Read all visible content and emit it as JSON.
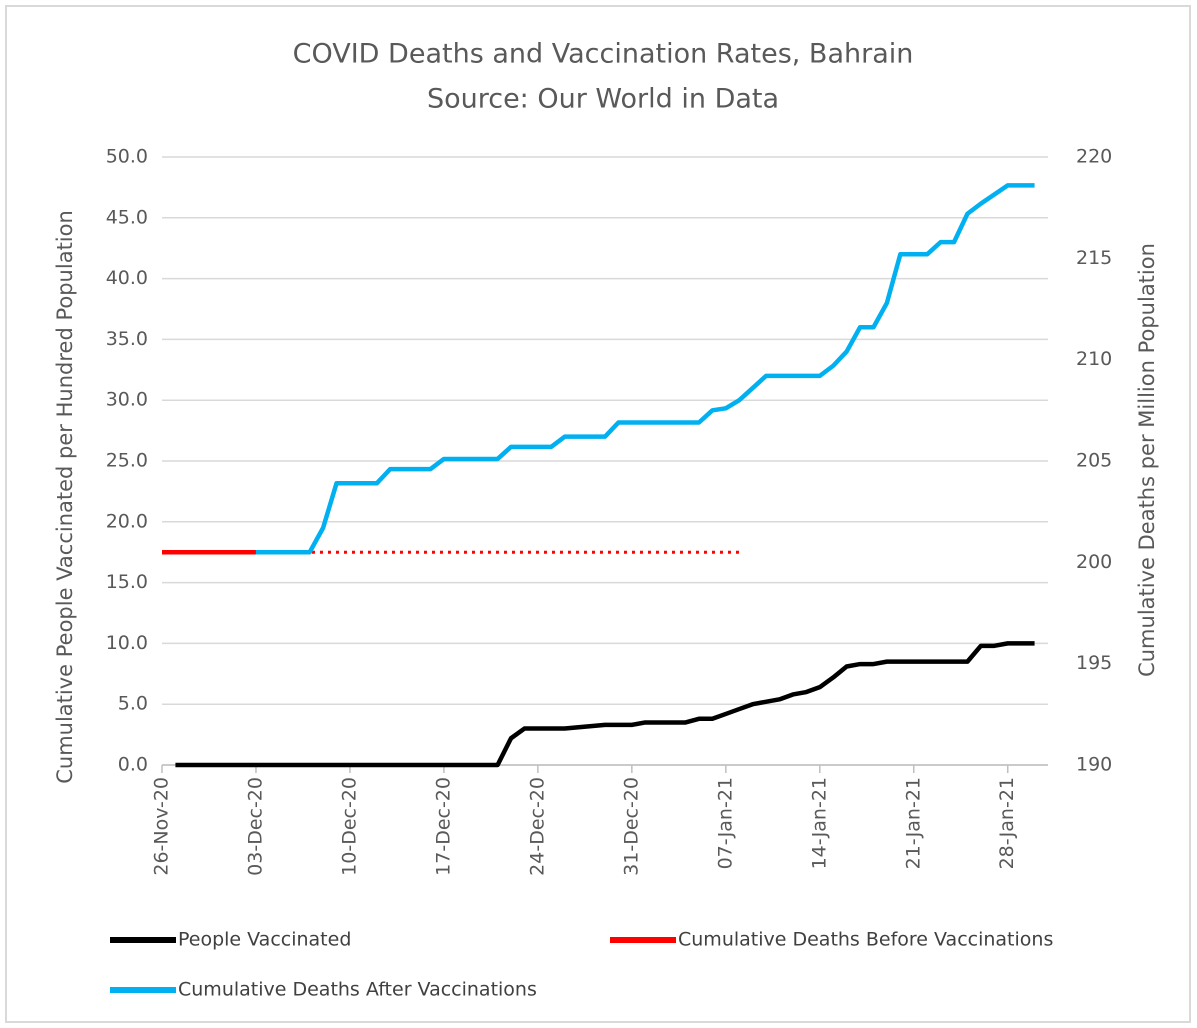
{
  "chart_data": {
    "type": "line",
    "title": "COVID Deaths and Vaccination Rates, Bahrain",
    "subtitle": "Source: Our World in Data",
    "y_label": "Cumulative People Vaccinated per Hundred Population",
    "y2_label": "Cumulative Deaths per Million Population",
    "xlim": [
      "2020-11-26",
      "2021-01-31"
    ],
    "xticks": [
      {
        "value": "2020-11-26",
        "label": "26-Nov-20"
      },
      {
        "value": "2020-12-03",
        "label": "03-Dec-20"
      },
      {
        "value": "2020-12-10",
        "label": "10-Dec-20"
      },
      {
        "value": "2020-12-17",
        "label": "17-Dec-20"
      },
      {
        "value": "2020-12-24",
        "label": "24-Dec-20"
      },
      {
        "value": "2020-12-31",
        "label": "31-Dec-20"
      },
      {
        "value": "2021-01-07",
        "label": "07-Jan-21"
      },
      {
        "value": "2021-01-14",
        "label": "14-Jan-21"
      },
      {
        "value": "2021-01-21",
        "label": "21-Jan-21"
      },
      {
        "value": "2021-01-28",
        "label": "28-Jan-21"
      }
    ],
    "ylim": [
      0,
      50
    ],
    "yticks": [
      {
        "value": 0,
        "label": "0.0"
      },
      {
        "value": 5,
        "label": "5.0"
      },
      {
        "value": 10,
        "label": "10.0"
      },
      {
        "value": 15,
        "label": "15.0"
      },
      {
        "value": 20,
        "label": "20.0"
      },
      {
        "value": 25,
        "label": "25.0"
      },
      {
        "value": 30,
        "label": "30.0"
      },
      {
        "value": 35,
        "label": "35.0"
      },
      {
        "value": 40,
        "label": "40.0"
      },
      {
        "value": 45,
        "label": "45.0"
      },
      {
        "value": 50,
        "label": "50.0"
      }
    ],
    "y2lim": [
      190,
      220
    ],
    "y2ticks": [
      190,
      195,
      200,
      205,
      210,
      215,
      220
    ],
    "grid": true,
    "legend": "bottom",
    "series": [
      {
        "name": "People Vaccinated",
        "color": "#000000",
        "x": [
          "2020-11-27",
          "2020-12-21",
          "2020-12-22",
          "2020-12-23",
          "2020-12-26",
          "2020-12-29",
          "2020-12-31",
          "2021-01-01",
          "2021-01-04",
          "2021-01-05",
          "2021-01-06",
          "2021-01-07",
          "2021-01-08",
          "2021-01-09",
          "2021-01-11",
          "2021-01-12",
          "2021-01-13",
          "2021-01-14",
          "2021-01-15",
          "2021-01-16",
          "2021-01-17",
          "2021-01-18",
          "2021-01-19",
          "2021-01-25",
          "2021-01-26",
          "2021-01-27",
          "2021-01-28",
          "2021-01-30"
        ],
        "values": [
          0,
          0,
          2.2,
          3.0,
          3.0,
          3.3,
          3.3,
          3.5,
          3.5,
          3.8,
          3.8,
          4.2,
          4.6,
          5.0,
          5.4,
          5.8,
          6.0,
          6.4,
          7.2,
          8.1,
          8.3,
          8.3,
          8.5,
          8.5,
          9.8,
          9.8,
          10.0,
          10.0
        ]
      },
      {
        "name": "Cumulative Deaths Before Vaccinations",
        "color": "#ff0000",
        "axis": "y2",
        "x": [
          "2020-11-26",
          "2020-12-03"
        ],
        "values": [
          200.5,
          200.5
        ]
      },
      {
        "name": "Cumulative Deaths After Vaccinations",
        "color": "#00b0f0",
        "axis": "y2",
        "x": [
          "2020-12-03",
          "2020-12-07",
          "2020-12-08",
          "2020-12-09",
          "2020-12-12",
          "2020-12-13",
          "2020-12-16",
          "2020-12-17",
          "2020-12-21",
          "2020-12-22",
          "2020-12-25",
          "2020-12-26",
          "2020-12-29",
          "2020-12-30",
          "2021-01-05",
          "2021-01-06",
          "2021-01-07",
          "2021-01-08",
          "2021-01-09",
          "2021-01-10",
          "2021-01-14",
          "2021-01-15",
          "2021-01-16",
          "2021-01-17",
          "2021-01-18",
          "2021-01-19",
          "2021-01-20",
          "2021-01-22",
          "2021-01-23",
          "2021-01-24",
          "2021-01-25",
          "2021-01-26",
          "2021-01-28",
          "2021-01-30"
        ],
        "values": [
          200.5,
          200.5,
          201.7,
          203.9,
          203.9,
          204.6,
          204.6,
          205.1,
          205.1,
          205.7,
          205.7,
          206.2,
          206.2,
          206.9,
          206.9,
          207.5,
          207.6,
          208.0,
          208.6,
          209.2,
          209.2,
          209.7,
          210.4,
          211.6,
          211.6,
          212.8,
          215.2,
          215.2,
          215.8,
          215.8,
          217.2,
          217.7,
          218.6,
          218.6
        ]
      }
    ],
    "reference_lines": [
      {
        "axis": "y2",
        "y": 200.5,
        "x": [
          "2020-12-03",
          "2021-01-08"
        ],
        "color": "#ff0000",
        "style": "dotted"
      }
    ]
  }
}
